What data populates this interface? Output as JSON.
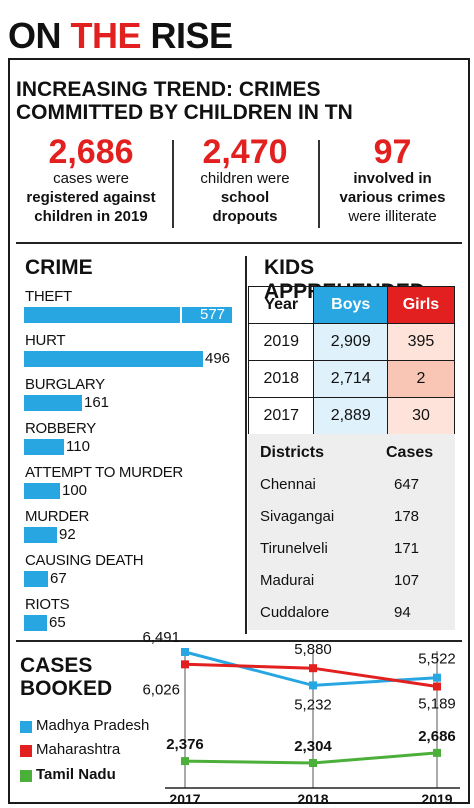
{
  "headline": {
    "word1": "ON",
    "word2": "THE",
    "word3": "RISE"
  },
  "trend": {
    "title_line1": "INCREASING TREND: CRIMES",
    "title_line2": "COMMITTED BY CHILDREN IN TN"
  },
  "stats": [
    {
      "value": "2,686",
      "line1": "cases were",
      "line2": "registered against",
      "line3": "children in 2019"
    },
    {
      "value": "2,470",
      "line1": "children were",
      "line2": "school",
      "line3": "dropouts"
    },
    {
      "value": "97",
      "line1": "involved in",
      "line2": "various crimes",
      "line3": "were illiterate"
    }
  ],
  "colors": {
    "red": "#e1201f",
    "blue": "#27a6e1",
    "green": "#4caf3a"
  },
  "chart_data": [
    {
      "type": "bar",
      "title": "CRIME",
      "categories": [
        "THEFT",
        "HURT",
        "BURGLARY",
        "ROBBERY",
        "ATTEMPT TO MURDER",
        "MURDER",
        "CAUSING DEATH",
        "RIOTS"
      ],
      "values": [
        577,
        496,
        161,
        110,
        100,
        92,
        67,
        65
      ],
      "labels": [
        "577",
        "496",
        "161",
        "110",
        "100",
        "92",
        "67",
        "65"
      ]
    },
    {
      "type": "table",
      "title": "KIDS APPREHENDED",
      "columns": [
        "Year",
        "Boys",
        "Girls"
      ],
      "rows": [
        [
          "2019",
          "2,909",
          "395"
        ],
        [
          "2018",
          "2,714",
          "2"
        ],
        [
          "2017",
          "2,889",
          "30"
        ]
      ]
    },
    {
      "type": "table",
      "columns": [
        "Districts",
        "Cases"
      ],
      "rows": [
        [
          "Chennai",
          "647"
        ],
        [
          "Sivagangai",
          "178"
        ],
        [
          "Tirunelveli",
          "171"
        ],
        [
          "Madurai",
          "107"
        ],
        [
          "Cuddalore",
          "94"
        ]
      ]
    },
    {
      "type": "line",
      "title_line1": "CASES",
      "title_line2": "BOOKED",
      "x": [
        "2017",
        "2018",
        "2019"
      ],
      "series": [
        {
          "name": "Madhya Pradesh",
          "values": [
            6491,
            5232,
            5522
          ],
          "labels": [
            "6,491",
            "5,232",
            "5,522"
          ]
        },
        {
          "name": "Maharashtra",
          "values": [
            6026,
            5880,
            5189
          ],
          "labels": [
            "6,026",
            "5,880",
            "5,189"
          ]
        },
        {
          "name": "Tamil Nadu",
          "values": [
            2376,
            2304,
            2686
          ],
          "labels": [
            "2,376",
            "2,304",
            "2,686"
          ]
        }
      ]
    }
  ]
}
